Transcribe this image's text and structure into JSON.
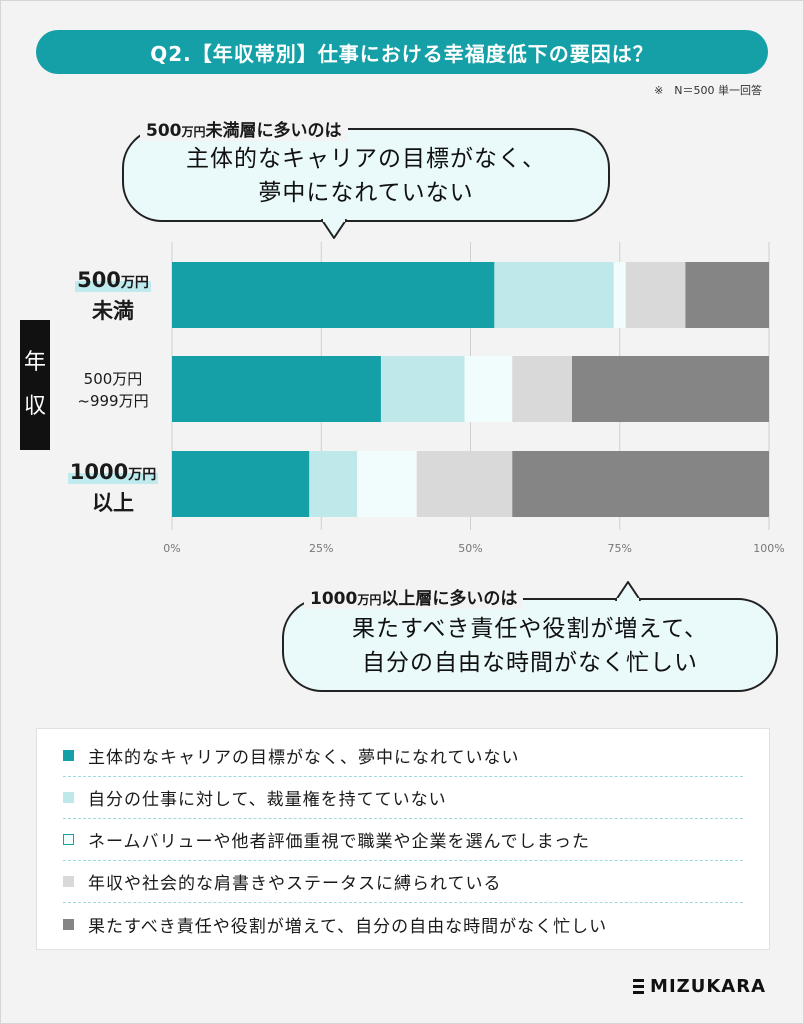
{
  "title": "Q2.【年収帯別】仕事における幸福度低下の要因は？",
  "note": "※　N＝500 単一回答",
  "axis_title": [
    "年",
    "収"
  ],
  "top_callout": {
    "label_main": "500",
    "label_unit": "万円",
    "label_rest": "未満層に多いのは",
    "lines": [
      "主体的なキャリアの目標がなく、",
      "夢中になれていない"
    ]
  },
  "bottom_callout": {
    "label_main": "1000",
    "label_unit": "万円",
    "label_rest": "以上層に多いのは",
    "lines": [
      "果たすべき責任や役割が増えて、",
      "自分の自由な時間がなく忙しい"
    ]
  },
  "category_labels": [
    {
      "num": "500",
      "unit": "万円",
      "line2": "未満"
    },
    {
      "line1": "500万円",
      "line2": "~999万円"
    },
    {
      "num": "1000",
      "unit": "万円",
      "line2": "以上"
    }
  ],
  "chart_data": {
    "type": "bar",
    "orientation": "horizontal",
    "stacked": true,
    "categories": [
      "500万円未満",
      "500万円~999万円",
      "1000万円以上"
    ],
    "series": [
      {
        "name": "主体的なキャリアの目標がなく、夢中になれていない",
        "color": "#15a0a8",
        "values": [
          54,
          35,
          23
        ]
      },
      {
        "name": "自分の仕事に対して、裁量権を持てていない",
        "color": "#bfe8eb",
        "values": [
          20,
          14,
          8
        ]
      },
      {
        "name": "ネームバリューや他者評価重視で職業や企業を選んでしまった",
        "color": "#f1fcfd",
        "values": [
          2,
          8,
          10
        ]
      },
      {
        "name": "年収や社会的な肩書きやステータスに縛られている",
        "color": "#d9d9d9",
        "values": [
          10,
          10,
          16
        ]
      },
      {
        "name": "果たすべき責任や役割が増えて、自分の自由な時間がなく忙しい",
        "color": "#858585",
        "values": [
          14,
          33,
          43
        ]
      }
    ],
    "x_ticks": [
      "0%",
      "25%",
      "50%",
      "75%",
      "100%"
    ],
    "xlim": [
      0,
      100
    ],
    "grid": true,
    "legend_placement": "bottom"
  },
  "brand": "MIZUKARA"
}
